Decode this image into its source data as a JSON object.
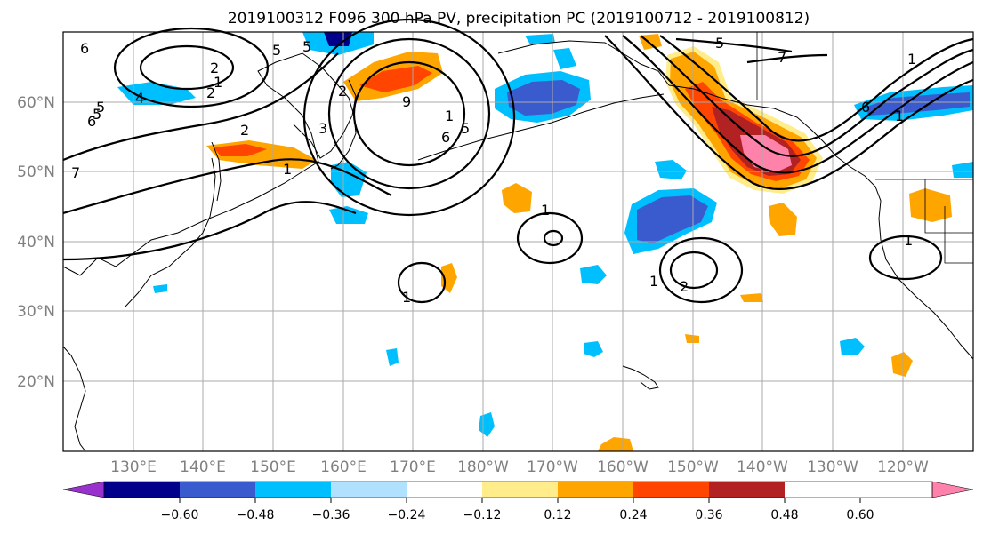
{
  "title": "2019100312 F096 300 hPa PV, precipitation PC (2019100712 - 2019100812)",
  "lat_labels": [
    "60°N",
    "50°N",
    "40°N",
    "30°N",
    "20°N"
  ],
  "lon_labels": [
    "130°E",
    "140°E",
    "150°E",
    "160°E",
    "170°E",
    "180°W",
    "170°W",
    "160°W",
    "150°W",
    "140°W",
    "130°W",
    "120°W"
  ],
  "colorbar": {
    "tick_labels": [
      "−0.60",
      "−0.48",
      "−0.36",
      "−0.24",
      "−0.12",
      "0.12",
      "0.24",
      "0.36",
      "0.48",
      "0.60"
    ],
    "colors": [
      "#9932cc",
      "#00008b",
      "#3a5bcd",
      "#00bfff",
      "#b0e2ff",
      "#ffffff",
      "#ffec8b",
      "#ffa500",
      "#ff4500",
      "#b22222",
      "#ff82ab"
    ]
  },
  "contour_labels": [
    "6",
    "5",
    "5",
    "1",
    "4",
    "5",
    "2",
    "6",
    "2",
    "3",
    "5",
    "1",
    "9",
    "1",
    "2",
    "6",
    "5",
    "1",
    "1",
    "2",
    "1",
    "1",
    "5",
    "7",
    "6",
    "1",
    "2",
    "1",
    "7"
  ]
}
